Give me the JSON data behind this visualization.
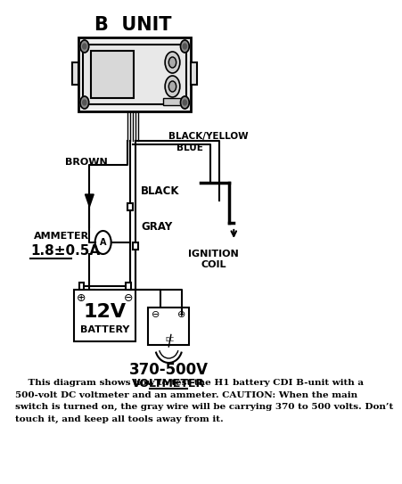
{
  "title": "B  UNIT",
  "bg_color": "#ffffff",
  "line_color": "#000000",
  "caption_line1": "    This diagram shows how to test the H1 battery CDI B-unit with a",
  "caption_line2": "500-volt DC voltmeter and an ammeter. CAUTION: When the main",
  "caption_line3": "switch is turned on, the gray wire will be carrying 370 to 500 volts. Don’t",
  "caption_line4": "touch it, and keep all tools away from it.",
  "label_black_yellow": "BLACK/YELLOW",
  "label_blue": "BLUE",
  "label_brown": "BROWN",
  "label_black": "BLACK",
  "label_gray": "GRAY",
  "label_ammeter": "AMMETER",
  "label_ammeter_val": "1.8±0.5A",
  "label_ignition": "IGNITION\nCOIL",
  "label_battery_val": "12V",
  "label_battery": "BATTERY",
  "label_voltmeter_val": "370-500V",
  "label_voltmeter": "VOLTMETER"
}
